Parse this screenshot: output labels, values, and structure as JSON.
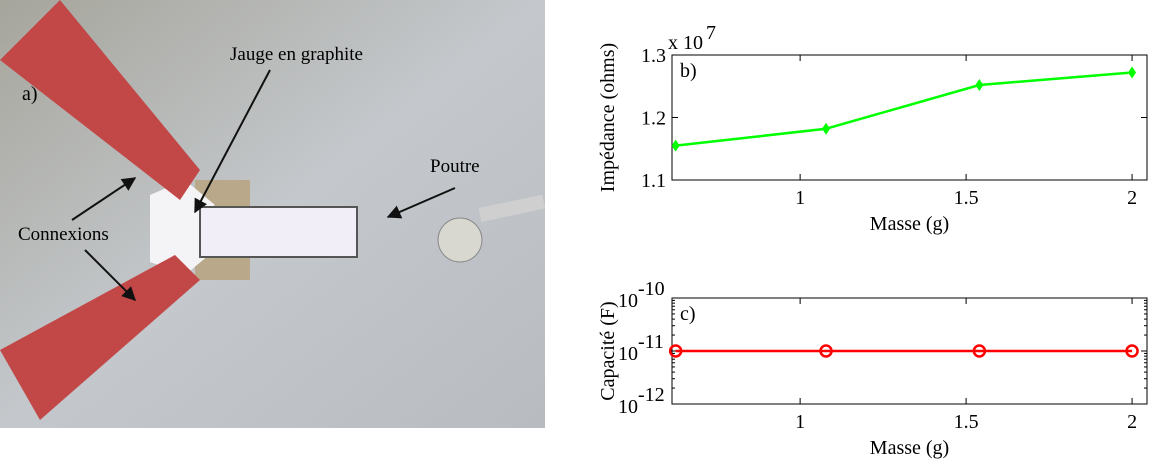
{
  "photo": {
    "panel_label": "a)",
    "annotations": [
      "Jauge en graphite",
      "Poutre",
      "Connexions"
    ]
  },
  "chart_data": [
    {
      "type": "line",
      "panel_label": "b)",
      "xlabel": "Masse (g)",
      "ylabel": "Impédance (ohms)",
      "y_multiplier": {
        "base": "x 10",
        "exponent": "7"
      },
      "x": [
        0.625,
        1.078,
        1.54,
        2.0
      ],
      "series": [
        {
          "name": "Impédance",
          "color": "#00ff00",
          "marker": "diamond",
          "values": [
            1.155,
            1.182,
            1.252,
            1.272
          ]
        }
      ],
      "xlim": [
        0.614,
        2.045
      ],
      "ylim": [
        1.1,
        1.3
      ],
      "xticks": [
        1,
        1.5,
        2
      ],
      "yticks": [
        1.1,
        1.2,
        1.3
      ],
      "log_y": false
    },
    {
      "type": "line",
      "panel_label": "c)",
      "xlabel": "Masse (g)",
      "ylabel": "Capacité (F)",
      "x": [
        0.625,
        1.078,
        1.54,
        2.0
      ],
      "series": [
        {
          "name": "Capacité",
          "color": "#ff0000",
          "marker": "circle",
          "values": [
            1e-11,
            1e-11,
            1e-11,
            1e-11
          ]
        }
      ],
      "xlim": [
        0.614,
        2.045
      ],
      "ylim": [
        1e-12,
        1e-10
      ],
      "xticks": [
        1,
        1.5,
        2
      ],
      "yticks": [
        {
          "value": 1e-12,
          "label": "10",
          "exponent": "-12"
        },
        {
          "value": 1e-11,
          "label": "10",
          "exponent": "-11"
        },
        {
          "value": 1e-10,
          "label": "10",
          "exponent": "-10"
        }
      ],
      "log_y": true
    }
  ]
}
